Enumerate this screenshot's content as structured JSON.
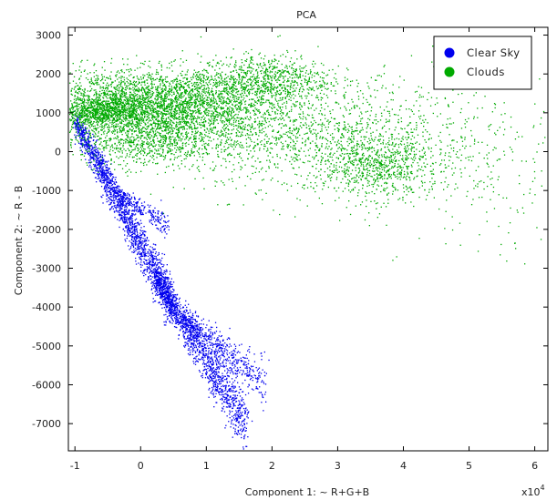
{
  "chart_data": {
    "type": "scatter",
    "title": "PCA",
    "xlabel": "Component 1: ~ R+G+B",
    "ylabel": "Component 2: ~ R - B",
    "x_multiplier_label": "x10",
    "x_multiplier_exponent": "4",
    "xlim": [
      -1.1,
      6.2
    ],
    "ylim": [
      -7700,
      3200
    ],
    "x_ticks": [
      -1,
      0,
      1,
      2,
      3,
      4,
      5,
      6
    ],
    "y_ticks": [
      3000,
      2000,
      1000,
      0,
      -1000,
      -2000,
      -3000,
      -4000,
      -5000,
      -6000,
      -7000
    ],
    "x_tick_labels": [
      "-1",
      "0",
      "1",
      "2",
      "3",
      "4",
      "5",
      "6"
    ],
    "y_tick_labels": [
      "3000",
      "2000",
      "1000",
      "0",
      "-1000",
      "-2000",
      "-3000",
      "-4000",
      "-5000",
      "-6000",
      "-7000"
    ],
    "grid": false,
    "legend_position": "top-right",
    "series": [
      {
        "name": "Clear Sky",
        "color": "#0000ee",
        "regions": [
          {
            "x_start": -1.0,
            "y_start": 800,
            "x_end": 0.5,
            "y_end": -4000,
            "spread": 320,
            "count": 1800
          },
          {
            "x_start": 0.2,
            "y_start": -3200,
            "x_end": 1.6,
            "y_end": -7000,
            "spread": 380,
            "count": 1300
          },
          {
            "x_start": 0.6,
            "y_start": -4200,
            "x_end": 1.9,
            "y_end": -6000,
            "spread": 300,
            "count": 500
          },
          {
            "x_start": -0.4,
            "y_start": -1000,
            "x_end": 0.4,
            "y_end": -1900,
            "spread": 150,
            "count": 250
          }
        ]
      },
      {
        "name": "Clouds",
        "color": "#00aa00",
        "regions": [
          {
            "cx": 0.3,
            "cy": 1000,
            "sx": 0.9,
            "sy": 450,
            "count": 2600
          },
          {
            "cx": 0.2,
            "cy": 1500,
            "sx": 1.0,
            "sy": 350,
            "count": 1200
          },
          {
            "cx": -0.6,
            "cy": 1050,
            "sx": 0.35,
            "sy": 180,
            "count": 700
          },
          {
            "cx": 0.1,
            "cy": 200,
            "sx": 0.5,
            "sy": 300,
            "count": 500
          },
          {
            "cx": 1.9,
            "cy": 1900,
            "sx": 0.5,
            "sy": 300,
            "count": 700
          },
          {
            "cx": 2.8,
            "cy": 300,
            "sx": 1.1,
            "sy": 700,
            "count": 1300
          },
          {
            "cx": 3.6,
            "cy": -400,
            "sx": 0.4,
            "sy": 350,
            "count": 500
          },
          {
            "cx": 4.6,
            "cy": 100,
            "sx": 0.9,
            "sy": 1000,
            "count": 250
          },
          {
            "cx": 5.3,
            "cy": -1000,
            "sx": 0.7,
            "sy": 900,
            "count": 90
          }
        ]
      }
    ]
  }
}
